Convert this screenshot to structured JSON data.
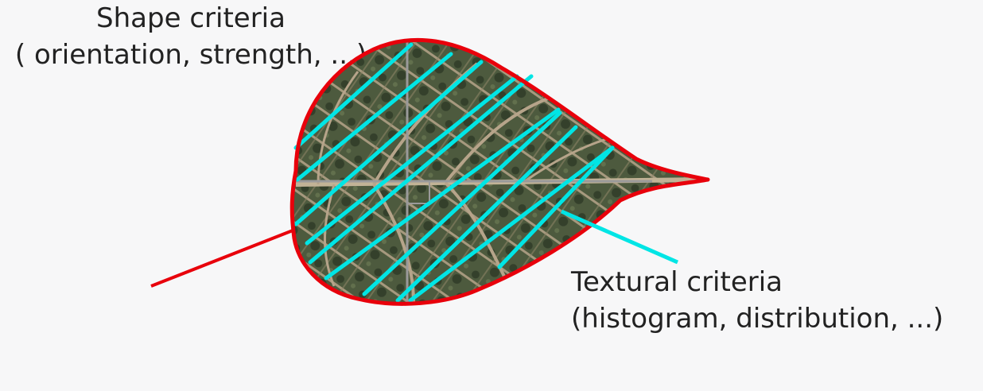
{
  "colors": {
    "background": "#f7f7f8",
    "leaf_outline": "#e8000b",
    "texture_hatch": "#00e5e5",
    "leaf_fill": "#4d5a3e",
    "leaf_vein": "#b6a48a",
    "crosshair": "#9a9a9a"
  },
  "icons": {
    "leaf": "leaf-image"
  },
  "shape_criteria": {
    "title": "Shape criteria",
    "detail": "( orientation, strength, ...)"
  },
  "textural_criteria": {
    "title": "Textural criteria",
    "detail": "(histogram, distribution, ...)"
  }
}
